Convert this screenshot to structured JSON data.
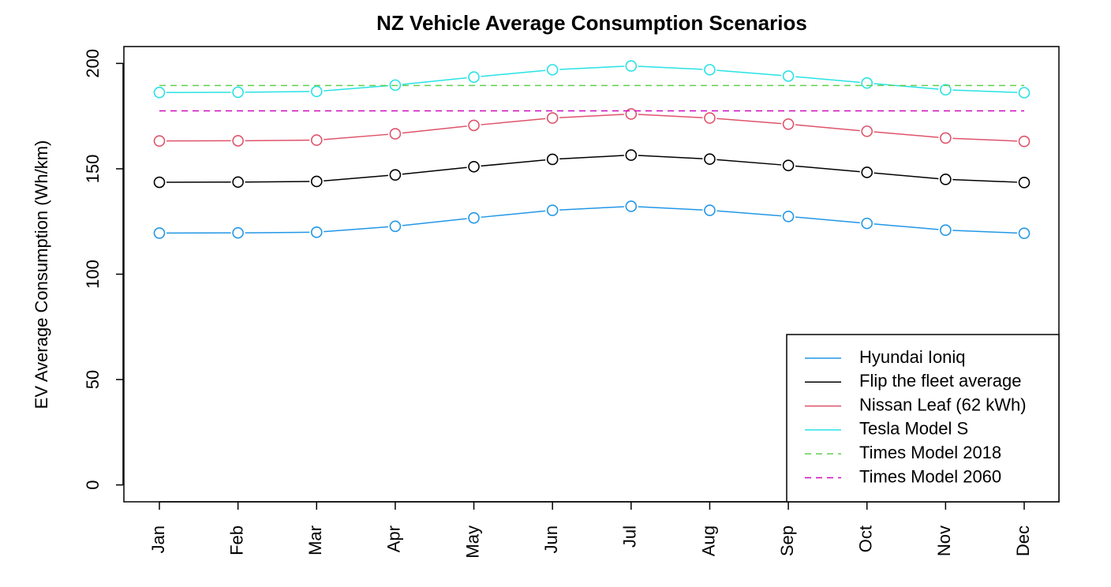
{
  "chart_data": {
    "type": "line",
    "title": "NZ Vehicle Average Consumption Scenarios",
    "xlabel": "",
    "ylabel": "EV Average Consumption (Wh/km)",
    "categories": [
      "Jan",
      "Feb",
      "Mar",
      "Apr",
      "May",
      "Jun",
      "Jul",
      "Aug",
      "Sep",
      "Oct",
      "Nov",
      "Dec"
    ],
    "ylim": [
      -8,
      208
    ],
    "yticks": [
      0,
      50,
      100,
      150,
      200
    ],
    "grid": false,
    "legend_position": "bottom-right",
    "series": [
      {
        "name": "Hyundai Ioniq",
        "color": "#2297e6",
        "style": "solid",
        "markers": true,
        "values": [
          119.5,
          119.6,
          119.9,
          122.7,
          126.7,
          130.3,
          132.2,
          130.3,
          127.4,
          124.1,
          120.9,
          119.4
        ]
      },
      {
        "name": "Flip the fleet average",
        "color": "#000000",
        "style": "solid",
        "markers": true,
        "values": [
          143.6,
          143.7,
          144.0,
          147.1,
          151.0,
          154.5,
          156.5,
          154.6,
          151.6,
          148.3,
          145.0,
          143.5
        ]
      },
      {
        "name": "Nissan Leaf (62 kWh)",
        "color": "#df536b",
        "style": "solid",
        "markers": true,
        "values": [
          163.2,
          163.3,
          163.6,
          166.6,
          170.6,
          174.1,
          176.0,
          174.1,
          171.2,
          167.8,
          164.6,
          163.0
        ]
      },
      {
        "name": "Tesla Model S",
        "color": "#28e2e5",
        "style": "solid",
        "markers": true,
        "values": [
          186.2,
          186.3,
          186.7,
          189.7,
          193.5,
          197.0,
          198.8,
          197.0,
          194.0,
          190.7,
          187.5,
          186.1
        ]
      },
      {
        "name": "Times Model 2018",
        "color": "#61d04f",
        "style": "dashed",
        "markers": false,
        "values": [
          189.5,
          189.5,
          189.5,
          189.5,
          189.5,
          189.5,
          189.5,
          189.5,
          189.5,
          189.5,
          189.5,
          189.5
        ]
      },
      {
        "name": "Times Model 2060",
        "color": "#cd0bbc",
        "style": "dashed",
        "markers": false,
        "values": [
          177.5,
          177.5,
          177.5,
          177.5,
          177.5,
          177.5,
          177.5,
          177.5,
          177.5,
          177.5,
          177.5,
          177.5
        ]
      }
    ]
  }
}
